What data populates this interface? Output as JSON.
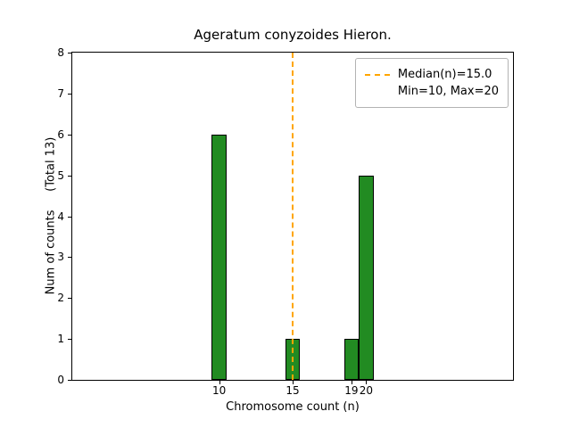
{
  "chart_data": {
    "type": "bar",
    "title": "Ageratum conyzoides Hieron.",
    "xlabel": "Chromosome count (n)",
    "ylabel": "Num of counts     (Total 13)",
    "categories": [
      10,
      15,
      19,
      20
    ],
    "values": [
      6,
      1,
      1,
      5
    ],
    "bar_width": 1.0,
    "bar_color": "#228B22",
    "bar_edge_color": "#000000",
    "xlim": [
      0,
      30
    ],
    "ylim": [
      0,
      8
    ],
    "xticks": [
      10,
      15,
      19,
      20
    ],
    "yticks": [
      0,
      1,
      2,
      3,
      4,
      5,
      6,
      7,
      8
    ],
    "median": 15.0,
    "median_color": "#FFA500",
    "grid": false,
    "legend_position": "upper right",
    "legend": {
      "items": [
        {
          "label": "Median(n)=15.0",
          "has_line": true
        },
        {
          "label": "Min=10, Max=20",
          "has_line": false
        }
      ]
    }
  }
}
